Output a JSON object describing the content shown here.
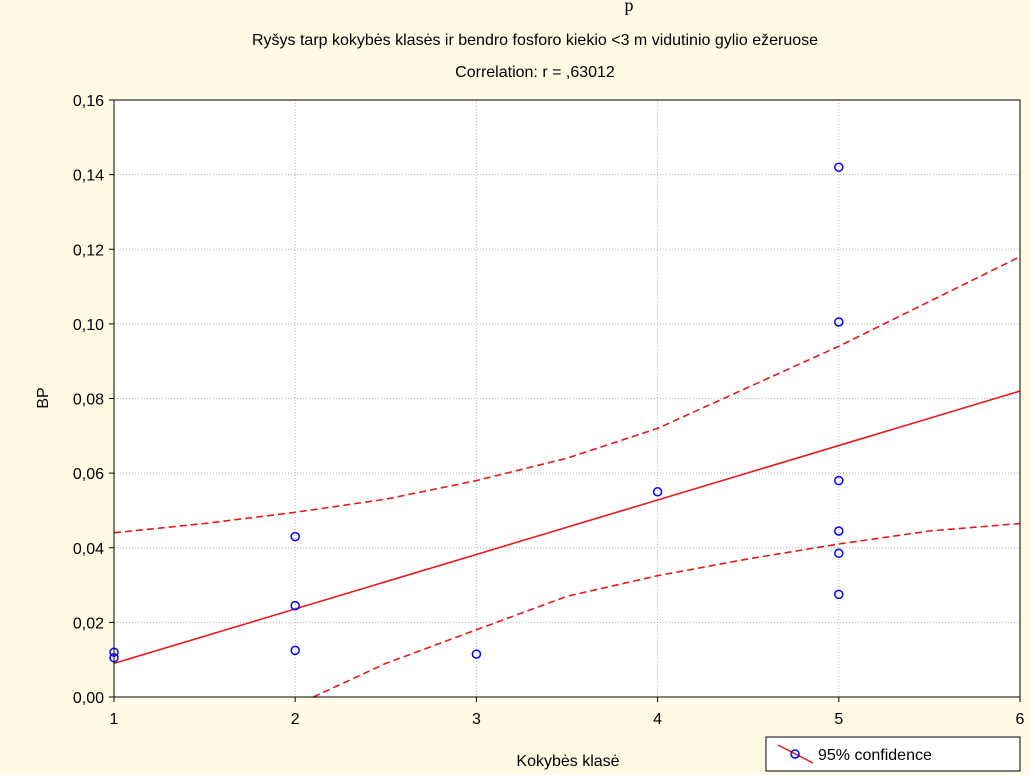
{
  "chart_data": {
    "type": "scatter",
    "top_fragment": "p",
    "title": "Ryšys tarp kokybės klasės ir bendro fosforo kiekio <3 m vidutinio gylio ežeruose",
    "subtitle": "Correlation: r = ,63012",
    "xlabel": "Kokybės klasė",
    "ylabel": "BP",
    "xlim": [
      1,
      6
    ],
    "ylim": [
      0,
      0.16
    ],
    "x_ticks": [
      {
        "v": 1,
        "label": "1"
      },
      {
        "v": 2,
        "label": "2"
      },
      {
        "v": 3,
        "label": "3"
      },
      {
        "v": 4,
        "label": "4"
      },
      {
        "v": 5,
        "label": "5"
      },
      {
        "v": 6,
        "label": "6"
      }
    ],
    "y_ticks": [
      {
        "v": 0,
        "label": "0,00"
      },
      {
        "v": 0.02,
        "label": "0,02"
      },
      {
        "v": 0.04,
        "label": "0,04"
      },
      {
        "v": 0.06,
        "label": "0,06"
      },
      {
        "v": 0.08,
        "label": "0,08"
      },
      {
        "v": 0.1,
        "label": "0,10"
      },
      {
        "v": 0.12,
        "label": "0,12"
      },
      {
        "v": 0.14,
        "label": "0,14"
      },
      {
        "v": 0.16,
        "label": "0,16"
      }
    ],
    "grid": true,
    "legend": {
      "position": "bottom-right",
      "label": "95% confidence"
    },
    "points": [
      {
        "x": 1,
        "y": 0.012
      },
      {
        "x": 1,
        "y": 0.0105
      },
      {
        "x": 2,
        "y": 0.043
      },
      {
        "x": 2,
        "y": 0.0245
      },
      {
        "x": 2,
        "y": 0.0125
      },
      {
        "x": 3,
        "y": 0.0115
      },
      {
        "x": 4,
        "y": 0.055
      },
      {
        "x": 5,
        "y": 0.142
      },
      {
        "x": 5,
        "y": 0.1005
      },
      {
        "x": 5,
        "y": 0.058
      },
      {
        "x": 5,
        "y": 0.0445
      },
      {
        "x": 5,
        "y": 0.0385
      },
      {
        "x": 5,
        "y": 0.0275
      }
    ],
    "regression": {
      "x": [
        1,
        6
      ],
      "y": [
        0.009,
        0.082
      ]
    },
    "confidence_upper": {
      "x": [
        1,
        1.5,
        2,
        2.5,
        3,
        3.5,
        4,
        4.5,
        5,
        5.5,
        6
      ],
      "y": [
        0.044,
        0.0465,
        0.0495,
        0.053,
        0.058,
        0.064,
        0.072,
        0.083,
        0.094,
        0.106,
        0.118
      ]
    },
    "confidence_lower": {
      "x": [
        2.1,
        2.5,
        3,
        3.5,
        4,
        4.5,
        5,
        5.5,
        6
      ],
      "y": [
        0.0,
        0.009,
        0.018,
        0.027,
        0.0325,
        0.037,
        0.041,
        0.0445,
        0.0465
      ]
    },
    "colors": {
      "background": "#fffbe5",
      "plot_background": "#ffffff",
      "points": "#0000ff",
      "line": "#e41a1a",
      "grid": "#b4b4b4"
    }
  }
}
